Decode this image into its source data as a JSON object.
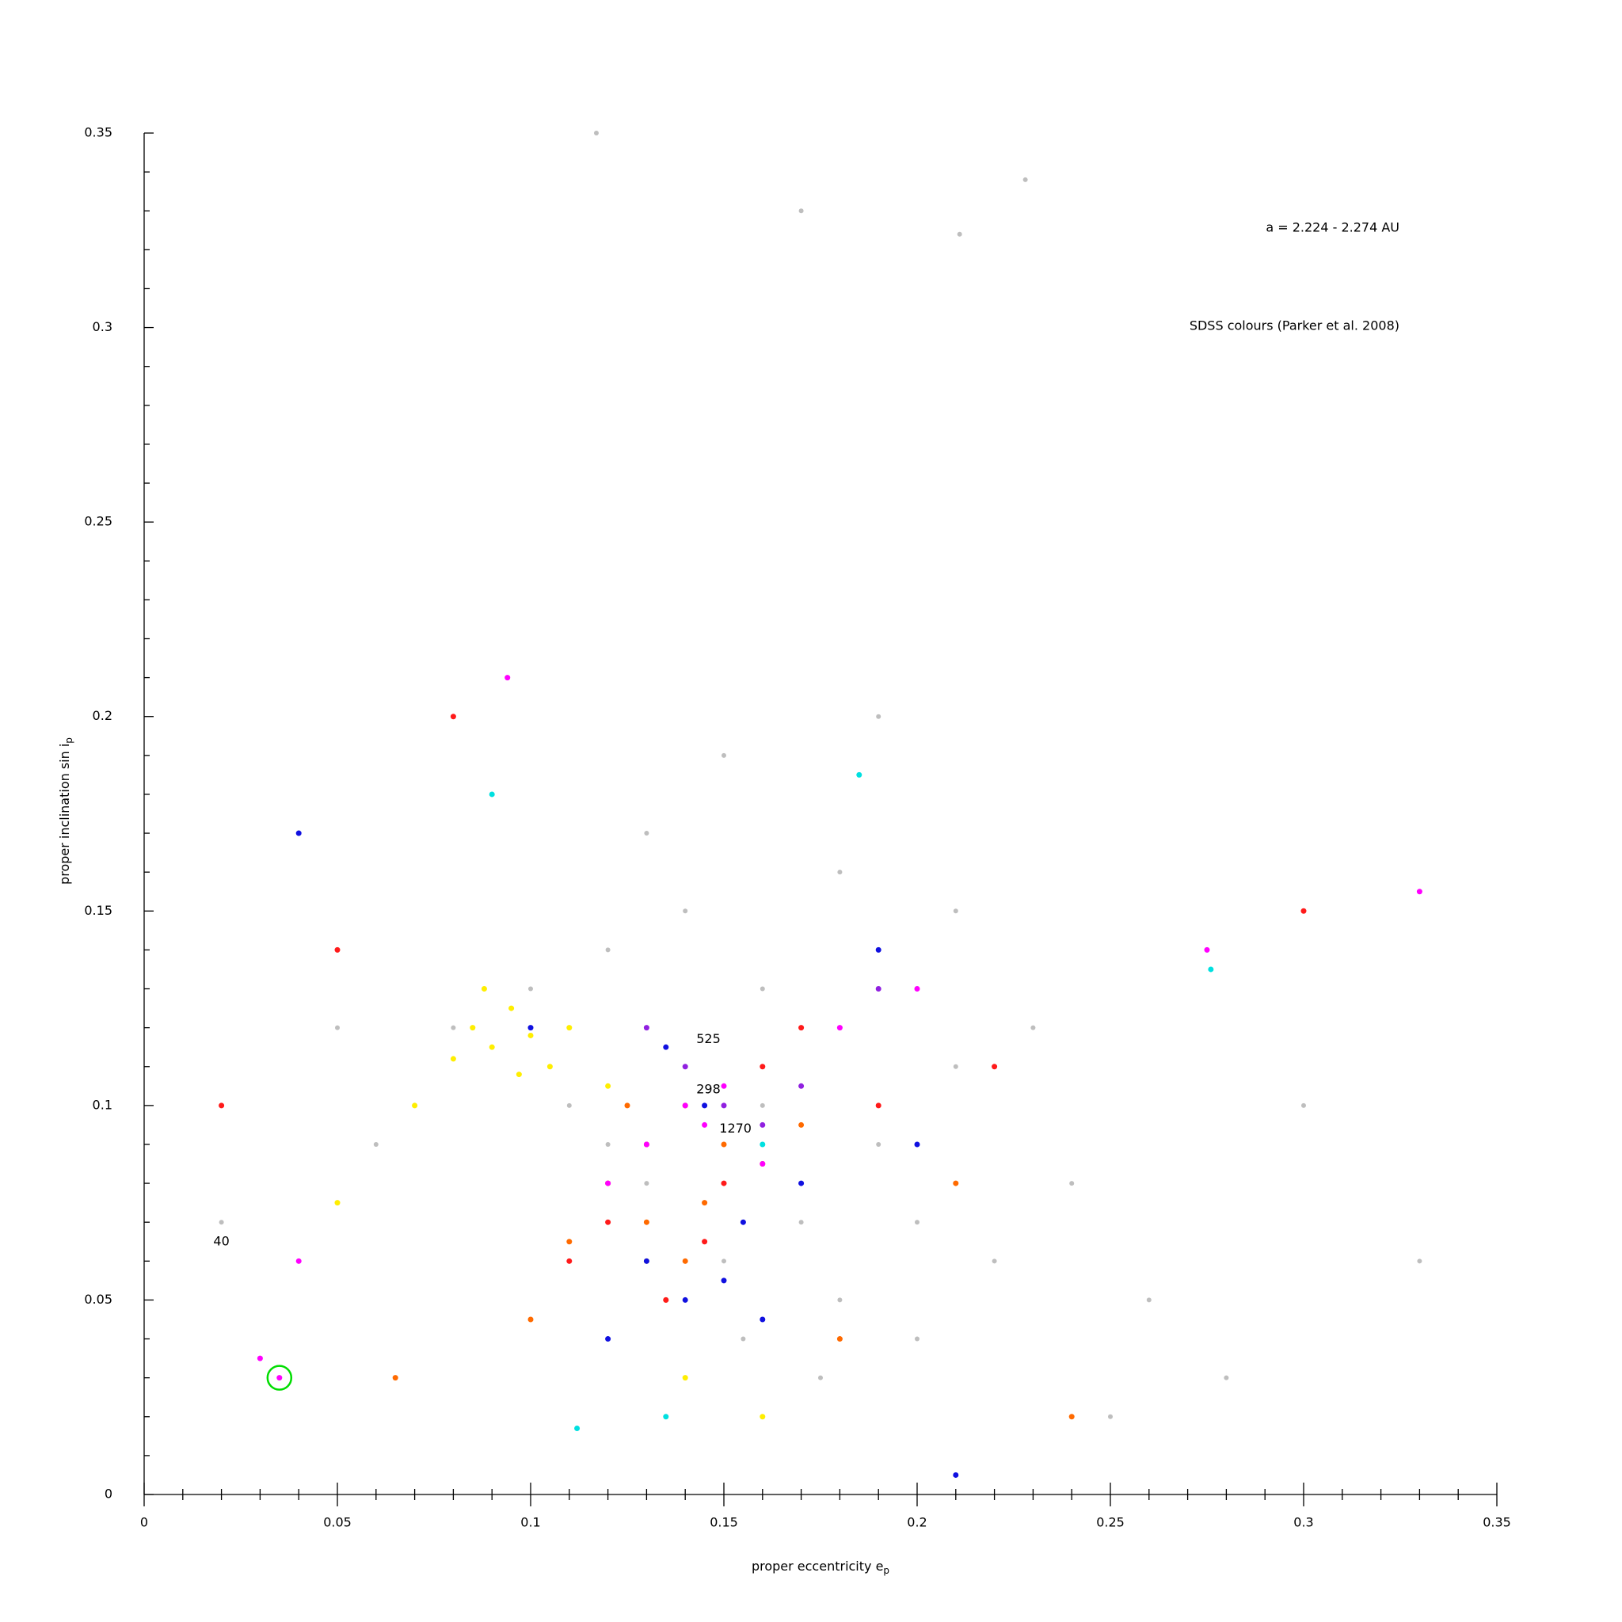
{
  "chart_data": {
    "type": "scatter",
    "xlabel": "proper eccentricity e",
    "xlabel_sub": "p",
    "ylabel": "proper inclination sin i",
    "ylabel_sub": "p",
    "xlim": [
      0,
      0.35
    ],
    "ylim": [
      0,
      0.35
    ],
    "xticks": [
      0,
      0.05,
      0.1,
      0.15,
      0.2,
      0.25,
      0.3,
      0.35
    ],
    "yticks": [
      0,
      0.05,
      0.1,
      0.15,
      0.2,
      0.25,
      0.3,
      0.35
    ],
    "xminorticks": [
      0.01,
      0.02,
      0.03,
      0.04,
      0.06,
      0.07,
      0.08,
      0.09,
      0.11,
      0.12,
      0.13,
      0.14,
      0.16,
      0.17,
      0.18,
      0.19,
      0.21,
      0.22,
      0.23,
      0.24,
      0.26,
      0.27,
      0.28,
      0.29,
      0.31,
      0.32,
      0.33,
      0.34
    ],
    "yminorticks": [
      0.01,
      0.02,
      0.03,
      0.04,
      0.06,
      0.07,
      0.08,
      0.09,
      0.11,
      0.12,
      0.13,
      0.14,
      0.16,
      0.17,
      0.18,
      0.19,
      0.21,
      0.22,
      0.23,
      0.24,
      0.26,
      0.27,
      0.28,
      0.29,
      0.31,
      0.32,
      0.33,
      0.34
    ],
    "annotations": [
      {
        "text": "a = 2.224 - 2.274 AU"
      },
      {
        "text": "SDSS colours (Parker et al. 2008)"
      }
    ],
    "point_labels": [
      {
        "text": "525",
        "x": 0.146,
        "y": 0.117
      },
      {
        "text": "298",
        "x": 0.146,
        "y": 0.104
      },
      {
        "text": "1270",
        "x": 0.153,
        "y": 0.094
      },
      {
        "text": "40",
        "x": 0.02,
        "y": 0.065
      }
    ],
    "highlight": {
      "x": 0.035,
      "y": 0.03,
      "color": "#00dd00"
    },
    "series": [
      {
        "color": "#bebebe",
        "x": [
          0.02,
          0.05,
          0.08,
          0.09,
          0.1,
          0.11,
          0.12,
          0.13,
          0.14,
          0.15,
          0.16,
          0.17,
          0.18,
          0.19,
          0.2,
          0.21,
          0.22,
          0.24,
          0.26,
          0.3,
          0.33,
          0.12,
          0.14,
          0.16,
          0.18,
          0.095,
          0.105,
          0.135,
          0.155,
          0.175,
          0.2,
          0.23,
          0.15,
          0.17,
          0.06,
          0.28,
          0.21,
          0.25,
          0.19,
          0.13,
          0.117,
          0.228,
          0.211
        ],
        "values": [
          0.07,
          0.12,
          0.12,
          0.115,
          0.13,
          0.1,
          0.09,
          0.08,
          0.11,
          0.06,
          0.1,
          0.07,
          0.05,
          0.09,
          0.04,
          0.11,
          0.06,
          0.08,
          0.05,
          0.1,
          0.06,
          0.14,
          0.15,
          0.13,
          0.16,
          0.125,
          0.11,
          0.05,
          0.04,
          0.03,
          0.07,
          0.12,
          0.19,
          0.33,
          0.09,
          0.03,
          0.15,
          0.02,
          0.2,
          0.17,
          0.35,
          0.338,
          0.324
        ]
      },
      {
        "color": "#ffee00",
        "x": [
          0.085,
          0.09,
          0.095,
          0.1,
          0.105,
          0.08,
          0.11,
          0.12,
          0.088,
          0.097,
          0.07,
          0.13,
          0.05,
          0.14,
          0.16
        ],
        "values": [
          0.12,
          0.115,
          0.125,
          0.118,
          0.11,
          0.112,
          0.12,
          0.105,
          0.13,
          0.108,
          0.1,
          0.06,
          0.075,
          0.03,
          0.02
        ]
      },
      {
        "color": "#ff6a00",
        "x": [
          0.12,
          0.13,
          0.14,
          0.15,
          0.125,
          0.135,
          0.145,
          0.16,
          0.11,
          0.17,
          0.18,
          0.1,
          0.21,
          0.065,
          0.24
        ],
        "values": [
          0.08,
          0.07,
          0.06,
          0.09,
          0.1,
          0.05,
          0.075,
          0.085,
          0.065,
          0.095,
          0.04,
          0.045,
          0.08,
          0.03,
          0.02
        ]
      },
      {
        "color": "#ff1a1a",
        "x": [
          0.13,
          0.14,
          0.15,
          0.12,
          0.16,
          0.11,
          0.17,
          0.135,
          0.145,
          0.19,
          0.05,
          0.02,
          0.3,
          0.22,
          0.08
        ],
        "values": [
          0.09,
          0.1,
          0.08,
          0.07,
          0.11,
          0.06,
          0.12,
          0.05,
          0.065,
          0.1,
          0.14,
          0.1,
          0.15,
          0.11,
          0.2
        ]
      },
      {
        "color": "#ff00ff",
        "x": [
          0.14,
          0.145,
          0.15,
          0.13,
          0.16,
          0.12,
          0.035,
          0.03,
          0.04,
          0.18,
          0.2,
          0.094,
          0.275,
          0.33
        ],
        "values": [
          0.1,
          0.095,
          0.105,
          0.09,
          0.085,
          0.08,
          0.03,
          0.035,
          0.06,
          0.12,
          0.13,
          0.21,
          0.14,
          0.155
        ]
      },
      {
        "color": "#1010e0",
        "x": [
          0.14,
          0.15,
          0.13,
          0.16,
          0.145,
          0.155,
          0.12,
          0.17,
          0.1,
          0.19,
          0.2,
          0.04,
          0.21,
          0.135
        ],
        "values": [
          0.05,
          0.055,
          0.06,
          0.045,
          0.1,
          0.07,
          0.04,
          0.08,
          0.12,
          0.14,
          0.09,
          0.17,
          0.005,
          0.115
        ]
      },
      {
        "color": "#00e0e0",
        "x": [
          0.112,
          0.09,
          0.185,
          0.276,
          0.135,
          0.16
        ],
        "values": [
          0.017,
          0.18,
          0.185,
          0.135,
          0.02,
          0.09
        ]
      },
      {
        "color": "#9020e0",
        "x": [
          0.15,
          0.14,
          0.16,
          0.13,
          0.17,
          0.19
        ],
        "values": [
          0.1,
          0.11,
          0.095,
          0.12,
          0.105,
          0.13
        ]
      }
    ]
  }
}
